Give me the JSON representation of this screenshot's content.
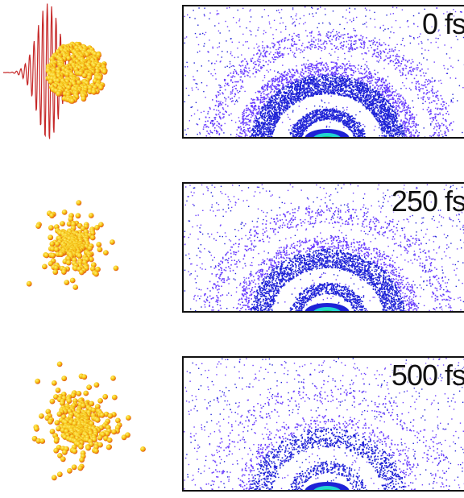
{
  "colors": {
    "sphere_light": "#fff176",
    "sphere_mid": "#f4c20d",
    "sphere_dark": "#e0521a",
    "pulse": "#c62828",
    "scatter_outer": "#6a3cff",
    "scatter_inner": "#1e22d6",
    "core_green": "#10c878",
    "core_cyan": "#22d4d0",
    "frame": "#111111"
  },
  "frames": [
    {
      "time_label": "0 fs",
      "cluster_state": "intact",
      "with_pulse": true,
      "ring_strength": 1.0
    },
    {
      "time_label": "250 fs",
      "cluster_state": "expanding",
      "with_pulse": false,
      "ring_strength": 0.7
    },
    {
      "time_label": "500 fs",
      "cluster_state": "disintegrated",
      "with_pulse": false,
      "ring_strength": 0.35
    }
  ]
}
